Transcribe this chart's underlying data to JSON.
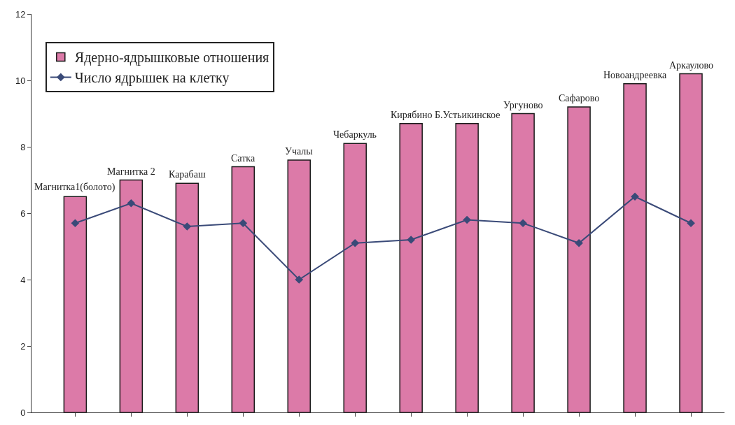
{
  "chart_data": {
    "type": "bar",
    "categories": [
      "Магнитка1(болото)",
      "Магнитка 2",
      "Карабаш",
      "Сатка",
      "Учалы",
      "Чебаркуль",
      "Кирябино",
      "Б.Устьикинское",
      "Ургуново",
      "Сафарово",
      "Новоандреевка",
      "Аркаулово"
    ],
    "series": [
      {
        "name": "Ядерно-ядрышковые отношения",
        "color": "#dc7aa8",
        "values": [
          6.5,
          7.0,
          6.9,
          7.4,
          7.6,
          8.1,
          8.7,
          8.7,
          9.0,
          9.2,
          9.9,
          10.2
        ]
      },
      {
        "name": "Число ядрышек на клетку",
        "type": "line",
        "color": "#3a4a78",
        "marker": "diamond",
        "values": [
          5.7,
          6.3,
          5.6,
          5.7,
          4.0,
          5.1,
          5.2,
          5.8,
          5.7,
          5.1,
          6.5,
          5.7
        ]
      }
    ],
    "ylim": [
      0,
      12
    ],
    "yticks": [
      0,
      2,
      4,
      6,
      8,
      10,
      12
    ],
    "tick_labels": "y",
    "legend": "top left"
  }
}
